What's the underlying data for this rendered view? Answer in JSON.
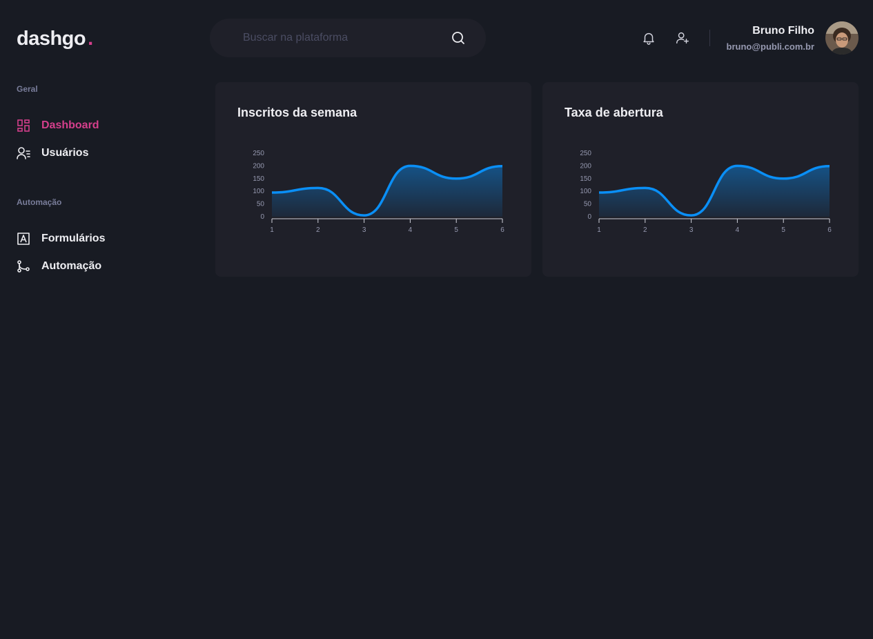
{
  "logo": {
    "text": "dashgo",
    "dot": "."
  },
  "search": {
    "placeholder": "Buscar na plataforma",
    "value": ""
  },
  "header": {
    "icons": [
      "bell-icon",
      "user-add-icon"
    ]
  },
  "profile": {
    "name": "Bruno Filho",
    "email": "bruno@publi.com.br"
  },
  "sidebar": {
    "sections": [
      {
        "title": "Geral",
        "items": [
          {
            "label": "Dashboard",
            "icon": "dashboard-icon",
            "active": true
          },
          {
            "label": "Usuários",
            "icon": "users-icon",
            "active": false
          }
        ]
      },
      {
        "title": "Automação",
        "items": [
          {
            "label": "Formulários",
            "icon": "form-icon",
            "active": false
          },
          {
            "label": "Automação",
            "icon": "git-merge-icon",
            "active": false
          }
        ]
      }
    ]
  },
  "colors": {
    "accent": "#d53f8c",
    "line": "#0a8ff6",
    "background": "#181b23",
    "card": "#1f2029"
  },
  "cards": [
    {
      "title": "Inscritos da semana"
    },
    {
      "title": "Taxa de abertura"
    }
  ],
  "chart_data": [
    {
      "type": "area",
      "title": "Inscritos da semana",
      "x": [
        1,
        2,
        3,
        4,
        5,
        6
      ],
      "values": [
        95,
        113,
        5,
        200,
        150,
        199
      ],
      "yticks": [
        0,
        50,
        100,
        150,
        200,
        250
      ],
      "ylim": [
        0,
        250
      ],
      "grid": false
    },
    {
      "type": "area",
      "title": "Taxa de abertura",
      "x": [
        1,
        2,
        3,
        4,
        5,
        6
      ],
      "values": [
        95,
        113,
        5,
        200,
        150,
        199
      ],
      "yticks": [
        0,
        50,
        100,
        150,
        200,
        250
      ],
      "ylim": [
        0,
        250
      ],
      "grid": false
    }
  ]
}
